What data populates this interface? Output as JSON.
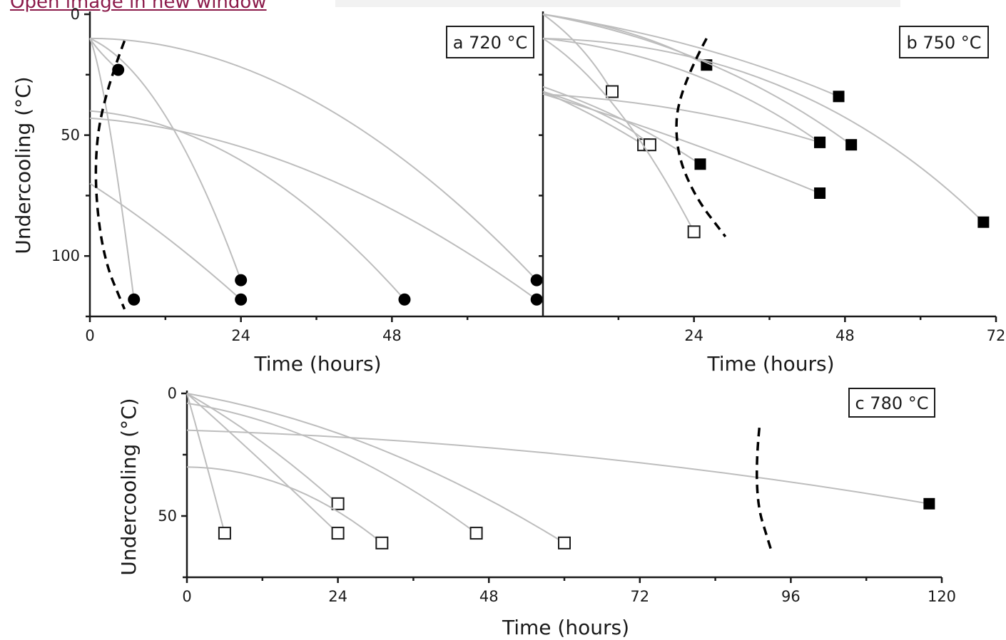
{
  "header": {
    "link_text": "Open image in new window"
  },
  "chart_data": [
    {
      "type": "line",
      "panel_label": "a 720 °C",
      "xlabel": "Time (hours)",
      "ylabel": "Undercooling (°C)",
      "xlim": [
        0,
        72
      ],
      "ylim": [
        0,
        125
      ],
      "y_inverted": true,
      "x_ticks": [
        "0",
        "24",
        "48"
      ],
      "y_ticks": [
        "0",
        "50",
        "100"
      ],
      "series": [
        {
          "curve": [
            [
              0,
              10
            ],
            [
              1.8,
              16
            ],
            [
              4.5,
              23
            ]
          ],
          "marker": "filled-circle"
        },
        {
          "curve": [
            [
              0,
              10
            ],
            [
              3,
              45
            ],
            [
              7,
              118
            ]
          ],
          "marker": "filled-circle"
        },
        {
          "curve": [
            [
              0,
              10
            ],
            [
              12,
              42
            ],
            [
              24,
              110
            ]
          ],
          "marker": "filled-circle"
        },
        {
          "curve": [
            [
              0,
              40
            ],
            [
              25,
              62
            ],
            [
              50,
              118
            ]
          ],
          "marker": "filled-circle"
        },
        {
          "curve": [
            [
              0,
              70
            ],
            [
              12,
              92
            ],
            [
              24,
              118
            ]
          ],
          "marker": "filled-circle"
        },
        {
          "curve": [
            [
              0,
              10
            ],
            [
              35,
              35
            ],
            [
              71,
              110
            ]
          ],
          "marker": "filled-circle"
        },
        {
          "curve": [
            [
              0,
              43
            ],
            [
              35,
              65
            ],
            [
              71,
              118
            ]
          ],
          "marker": "filled-circle"
        }
      ],
      "boundary": [
        [
          5.5,
          11
        ],
        [
          2,
          35
        ],
        [
          0.6,
          65
        ],
        [
          2,
          100
        ],
        [
          5.5,
          122
        ]
      ]
    },
    {
      "type": "line",
      "panel_label": "b 750 °C",
      "xlabel": "Time (hours)",
      "ylabel": "",
      "xlim": [
        0,
        72
      ],
      "ylim": [
        0,
        125
      ],
      "y_inverted": true,
      "x_ticks": [
        "24",
        "48",
        "72"
      ],
      "y_ticks": [],
      "series": [
        {
          "curve": [
            [
              0,
              0
            ],
            [
              6,
              14
            ],
            [
              11,
              32
            ]
          ],
          "marker": "open-square"
        },
        {
          "curve": [
            [
              0,
              32
            ],
            [
              8,
              42
            ],
            [
              16,
              54
            ]
          ],
          "marker": "open-square"
        },
        {
          "curve": [
            [
              0,
              32
            ],
            [
              10,
              42
            ],
            [
              17,
              54
            ]
          ],
          "marker": "open-square"
        },
        {
          "curve": [
            [
              0,
              10
            ],
            [
              12,
              40
            ],
            [
              24,
              90
            ]
          ],
          "marker": "open-square"
        },
        {
          "curve": [
            [
              0,
              0
            ],
            [
              14,
              8
            ],
            [
              26,
              21
            ]
          ],
          "marker": "filled-square"
        },
        {
          "curve": [
            [
              0,
              0
            ],
            [
              25,
              14
            ],
            [
              47,
              34
            ]
          ],
          "marker": "filled-square"
        },
        {
          "curve": [
            [
              0,
              10
            ],
            [
              23,
              24
            ],
            [
              44,
              53
            ]
          ],
          "marker": "filled-square"
        },
        {
          "curve": [
            [
              0,
              33
            ],
            [
              23,
              40
            ],
            [
              44,
              53
            ]
          ],
          "marker": "filled-square"
        },
        {
          "curve": [
            [
              0,
              0
            ],
            [
              26,
              20
            ],
            [
              49,
              54
            ]
          ],
          "marker": "filled-square"
        },
        {
          "curve": [
            [
              0,
              30
            ],
            [
              13,
              44
            ],
            [
              25,
              62
            ]
          ],
          "marker": "filled-square"
        },
        {
          "curve": [
            [
              0,
              33
            ],
            [
              22,
              52
            ],
            [
              44,
              74
            ]
          ],
          "marker": "filled-square"
        },
        {
          "curve": [
            [
              0,
              10
            ],
            [
              38,
              30
            ],
            [
              70,
              86
            ]
          ],
          "marker": "filled-square"
        }
      ],
      "boundary": [
        [
          26,
          10
        ],
        [
          21.5,
          32
        ],
        [
          21,
          55
        ],
        [
          24,
          75
        ],
        [
          29,
          92
        ]
      ]
    },
    {
      "type": "line",
      "panel_label": "c 780 °C",
      "xlabel": "Time (hours)",
      "ylabel": "Undercooling (°C)",
      "xlim": [
        0,
        120
      ],
      "ylim": [
        0,
        75
      ],
      "y_inverted": true,
      "x_ticks": [
        "0",
        "24",
        "48",
        "72",
        "96",
        "120"
      ],
      "y_ticks": [
        "0",
        "50"
      ],
      "series": [
        {
          "curve": [
            [
              0,
              0
            ],
            [
              3,
              28
            ],
            [
              6,
              57
            ]
          ],
          "marker": "open-square"
        },
        {
          "curve": [
            [
              0,
              0
            ],
            [
              12,
              20
            ],
            [
              24,
              45
            ]
          ],
          "marker": "open-square"
        },
        {
          "curve": [
            [
              0,
              0
            ],
            [
              12,
              28
            ],
            [
              24,
              57
            ]
          ],
          "marker": "open-square"
        },
        {
          "curve": [
            [
              0,
              30
            ],
            [
              16,
              38
            ],
            [
              31,
              61
            ]
          ],
          "marker": "open-square"
        },
        {
          "curve": [
            [
              0,
              4
            ],
            [
              23,
              22
            ],
            [
              46,
              57
            ]
          ],
          "marker": "open-square"
        },
        {
          "curve": [
            [
              0,
              0
            ],
            [
              30,
              22
            ],
            [
              60,
              61
            ]
          ],
          "marker": "open-square"
        },
        {
          "curve": [
            [
              0,
              15
            ],
            [
              60,
              25
            ],
            [
              118,
              45
            ]
          ],
          "marker": "filled-square"
        }
      ],
      "boundary": [
        [
          91,
          14
        ],
        [
          90,
          40
        ],
        [
          93,
          65
        ]
      ]
    }
  ]
}
